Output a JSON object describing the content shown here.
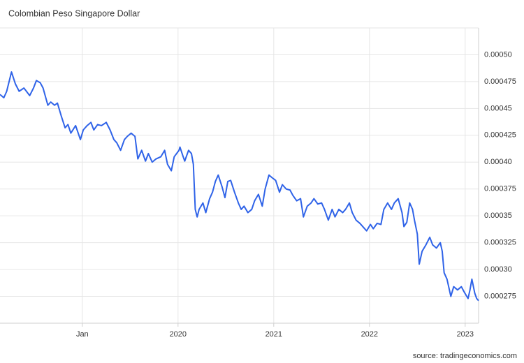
{
  "chart_data": {
    "type": "line",
    "title": "Colombian Peso Singapore Dollar",
    "source": "source: tradingeconomics.com",
    "color": "#2f63e8",
    "grid": true,
    "xlim": [
      2018.14,
      2023.14
    ],
    "xticks": [
      {
        "value": 2019,
        "label": "Jan"
      },
      2020,
      2021,
      2022,
      2023
    ],
    "ylim": [
      0.00025,
      0.000525
    ],
    "yticks": [
      {
        "value": 0.0005,
        "label": "0.00050"
      },
      0.000475,
      0.00045,
      0.000425,
      {
        "value": 0.0004,
        "label": "0.00040"
      },
      0.000375,
      0.00035,
      0.000325,
      {
        "value": 0.0003,
        "label": "0.00030"
      },
      0.000275
    ],
    "x": [
      2018.14,
      2018.18,
      2018.21,
      2018.26,
      2018.3,
      2018.34,
      2018.39,
      2018.45,
      2018.49,
      2018.52,
      2018.56,
      2018.59,
      2018.64,
      2018.67,
      2018.71,
      2018.74,
      2018.78,
      2018.82,
      2018.85,
      2018.88,
      2018.93,
      2018.98,
      2019.01,
      2019.05,
      2019.09,
      2019.12,
      2019.16,
      2019.2,
      2019.25,
      2019.29,
      2019.33,
      2019.36,
      2019.4,
      2019.44,
      2019.47,
      2019.51,
      2019.55,
      2019.58,
      2019.62,
      2019.66,
      2019.69,
      2019.73,
      2019.77,
      2019.82,
      2019.86,
      2019.89,
      2019.93,
      2019.96,
      2020.01,
      2020.02,
      2020.05,
      2020.07,
      2020.11,
      2020.14,
      2020.16,
      2020.18,
      2020.2,
      2020.22,
      2020.26,
      2020.29,
      2020.33,
      2020.36,
      2020.39,
      2020.42,
      2020.46,
      2020.49,
      2020.52,
      2020.55,
      2020.59,
      2020.63,
      2020.66,
      2020.69,
      2020.73,
      2020.77,
      2020.8,
      2020.84,
      2020.88,
      2020.91,
      2020.95,
      2020.99,
      2021.02,
      2021.06,
      2021.09,
      2021.13,
      2021.17,
      2021.2,
      2021.24,
      2021.28,
      2021.31,
      2021.35,
      2021.39,
      2021.42,
      2021.46,
      2021.5,
      2021.53,
      2021.57,
      2021.61,
      2021.64,
      2021.68,
      2021.72,
      2021.75,
      2021.79,
      2021.82,
      2021.86,
      2021.9,
      2021.93,
      2021.97,
      2022.01,
      2022.04,
      2022.08,
      2022.12,
      2022.15,
      2022.19,
      2022.23,
      2022.26,
      2022.3,
      2022.34,
      2022.36,
      2022.39,
      2022.42,
      2022.45,
      2022.47,
      2022.5,
      2022.52,
      2022.55,
      2022.59,
      2022.63,
      2022.66,
      2022.7,
      2022.74,
      2022.76,
      2022.78,
      2022.81,
      2022.85,
      2022.88,
      2022.92,
      2022.96,
      2022.99,
      2023.03,
      2023.05,
      2023.07,
      2023.1,
      2023.12,
      2023.14
    ],
    "values": [
      0.000463,
      0.00046,
      0.000466,
      0.000484,
      0.000473,
      0.000466,
      0.000469,
      0.000462,
      0.000469,
      0.000476,
      0.000474,
      0.000469,
      0.000453,
      0.000456,
      0.000453,
      0.000455,
      0.000443,
      0.000432,
      0.000435,
      0.000427,
      0.000434,
      0.000421,
      0.00043,
      0.000434,
      0.000437,
      0.00043,
      0.000435,
      0.000434,
      0.000437,
      0.00043,
      0.000421,
      0.000418,
      0.000411,
      0.000421,
      0.000424,
      0.000427,
      0.000424,
      0.000403,
      0.000411,
      0.000401,
      0.000408,
      0.0004,
      0.000403,
      0.000405,
      0.000411,
      0.000398,
      0.000392,
      0.000405,
      0.000411,
      0.000414,
      0.000406,
      0.000401,
      0.000411,
      0.000408,
      0.000398,
      0.000356,
      0.000349,
      0.000356,
      0.000362,
      0.000353,
      0.000366,
      0.000372,
      0.000382,
      0.000388,
      0.000377,
      0.000367,
      0.000382,
      0.000383,
      0.000372,
      0.000362,
      0.000356,
      0.000359,
      0.000353,
      0.000356,
      0.000364,
      0.00037,
      0.000359,
      0.000375,
      0.000388,
      0.000385,
      0.000383,
      0.000372,
      0.000379,
      0.000375,
      0.000374,
      0.000369,
      0.000364,
      0.000366,
      0.000349,
      0.000359,
      0.000362,
      0.000366,
      0.000361,
      0.000362,
      0.000356,
      0.000346,
      0.000356,
      0.000349,
      0.000356,
      0.000353,
      0.000356,
      0.000362,
      0.000353,
      0.000346,
      0.000343,
      0.00034,
      0.000336,
      0.000342,
      0.000338,
      0.000343,
      0.000342,
      0.000356,
      0.000362,
      0.000356,
      0.000362,
      0.000366,
      0.000353,
      0.00034,
      0.000344,
      0.000362,
      0.000356,
      0.000346,
      0.000333,
      0.000305,
      0.000317,
      0.000323,
      0.00033,
      0.000323,
      0.00032,
      0.000325,
      0.000317,
      0.000297,
      0.000291,
      0.000275,
      0.000284,
      0.000281,
      0.000284,
      0.000279,
      0.000273,
      0.000281,
      0.000291,
      0.000278,
      0.000273,
      0.000271
    ]
  }
}
